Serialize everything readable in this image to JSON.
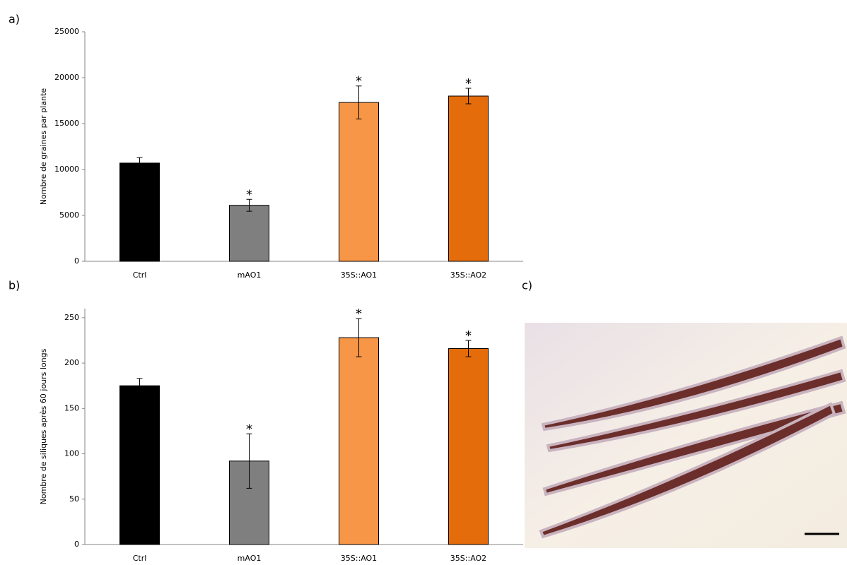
{
  "chart_data": [
    {
      "type": "bar",
      "panel_label": "a)",
      "y_label": "Nombre de graines par plante",
      "categories": [
        "Ctrl",
        "mAO1",
        "35S::AO1",
        "35S::AO2"
      ],
      "values": [
        10700,
        6100,
        17300,
        18000
      ],
      "errors": [
        600,
        650,
        1800,
        850
      ],
      "significance": [
        null,
        "*",
        "*",
        "*"
      ],
      "colors": [
        "#000000",
        "#7f7f7f",
        "#f79646",
        "#e46c0a"
      ],
      "ylim": [
        0,
        25000
      ],
      "yticks": [
        0,
        5000,
        10000,
        15000,
        20000,
        25000
      ]
    },
    {
      "type": "bar",
      "panel_label": "b)",
      "y_label": "Nombre de siliques après 60 jours longs",
      "categories": [
        "Ctrl",
        "mAO1",
        "35S::AO1",
        "35S::AO2"
      ],
      "values": [
        175,
        92,
        228,
        216
      ],
      "errors": [
        8,
        30,
        21,
        9
      ],
      "significance": [
        null,
        "*",
        "*",
        "*"
      ],
      "colors": [
        "#000000",
        "#7f7f7f",
        "#f79646",
        "#e46c0a"
      ],
      "ylim": [
        0,
        260
      ],
      "yticks": [
        0,
        50,
        100,
        150,
        200,
        250
      ]
    }
  ],
  "photo": {
    "panel_label": "c)"
  }
}
